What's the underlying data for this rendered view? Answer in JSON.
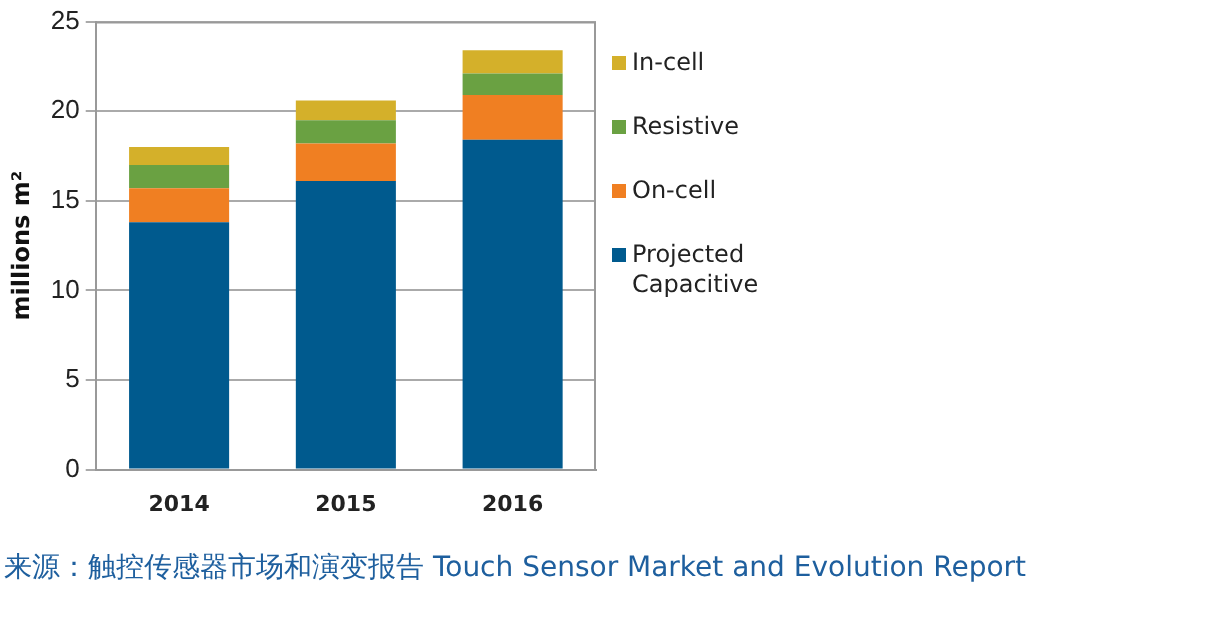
{
  "chart_data": {
    "type": "bar",
    "stacked": true,
    "ylabel": "millions m²",
    "categories": [
      "2014",
      "2015",
      "2016"
    ],
    "series": [
      {
        "name": "Projected Capacitive",
        "color": "#005a8e",
        "values": [
          13.8,
          16.1,
          18.4
        ]
      },
      {
        "name": "On-cell",
        "color": "#f07f22",
        "values": [
          1.9,
          2.1,
          2.5
        ]
      },
      {
        "name": "Resistive",
        "color": "#6aa142",
        "values": [
          1.3,
          1.3,
          1.2
        ]
      },
      {
        "name": "In-cell",
        "color": "#d4b02a",
        "values": [
          1.0,
          1.1,
          1.3
        ]
      }
    ],
    "ylim": [
      0,
      25
    ],
    "yticks": [
      0,
      5,
      10,
      15,
      20,
      25
    ],
    "grid": "y",
    "legend": "right",
    "annotations": [
      "来源：触控传感器市场和演变报告 Touch Sensor Market and Evolution Report"
    ]
  }
}
